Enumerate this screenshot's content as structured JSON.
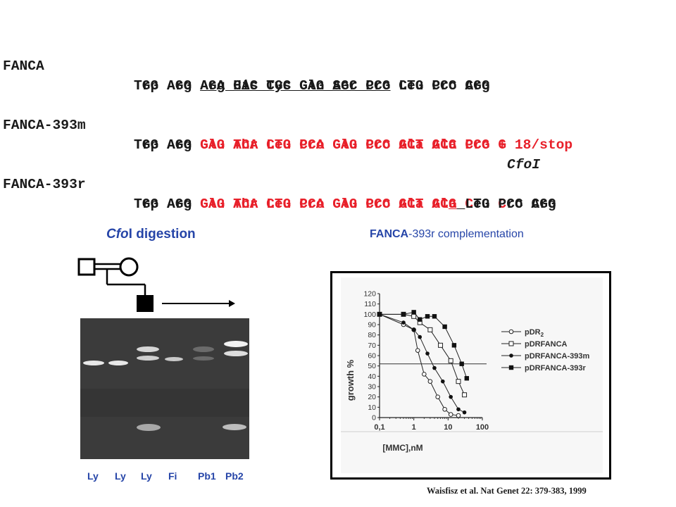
{
  "sequences": [
    {
      "label": "FANCA",
      "codons": "TGG AGG AGA CAC TGC CAG AGC CCG CTG CCC CGG",
      "aa": [
        "Trp Arg ",
        "Arg His Cys Gln Ser Pro",
        " Leu Pro Arg"
      ]
    },
    {
      "label": "FANCA-393m",
      "codons": [
        "TGG AGG ",
        "G",
        "AG ACA CTG CCA GAG CCC GCT GCC CCG G"
      ],
      "aa": [
        "Trp Arg ",
        "Glu Thr Leu Pro Glu Pro Ala Ala Pro + 18/stop"
      ]
    },
    {
      "enzyme_site": "CfoI"
    },
    {
      "label": "FANCA-393r",
      "codons": [
        "TGG AGG ",
        "G",
        "AG ACA CTG CCA GAG CCC GCT GC",
        "G",
        " ",
        "C",
        "TG ",
        "C",
        "CC CGG"
      ],
      "aa": [
        "Trp Arg ",
        "Glu Thr Leu Pro Glu Pro Ala Ala",
        " Leu Pro Arg"
      ]
    }
  ],
  "gel_panel": {
    "title_italic": "Cfo",
    "title_rest": "I digestion",
    "lane_labels": [
      "Ly",
      "Ly",
      "Ly",
      "Fi",
      "Pb1",
      "Pb2"
    ]
  },
  "complementation_panel": {
    "title_a": "FANCA",
    "title_b": "-393r complementation"
  },
  "chart_data": {
    "type": "line",
    "ylabel": "growth %",
    "xlabel": "[MMC],nM",
    "x_scale": "log",
    "x_ticks": [
      "0,1",
      "1",
      "10",
      "100"
    ],
    "y_ticks": [
      0,
      10,
      20,
      30,
      40,
      50,
      60,
      70,
      80,
      90,
      100,
      110,
      120
    ],
    "ylim": [
      0,
      120
    ],
    "reference_line_y": 52,
    "legend_position": "right",
    "series": [
      {
        "name": "pDR",
        "name_sub": "2",
        "marker": "open-circle",
        "x": [
          0.1,
          0.5,
          1,
          1.3,
          2,
          3,
          5,
          8,
          12,
          20
        ],
        "y": [
          100,
          90,
          85,
          65,
          42,
          35,
          20,
          8,
          3,
          2
        ]
      },
      {
        "name": "pDRFANCA",
        "marker": "open-square",
        "x": [
          0.1,
          0.5,
          1,
          1.5,
          3,
          6,
          12,
          20,
          30
        ],
        "y": [
          100,
          100,
          98,
          92,
          85,
          70,
          55,
          35,
          22
        ]
      },
      {
        "name": "pDRFANCA-393m",
        "marker": "filled-circle",
        "x": [
          0.1,
          0.5,
          1,
          1.5,
          2.5,
          4,
          7,
          12,
          20,
          30
        ],
        "y": [
          100,
          92,
          85,
          78,
          62,
          48,
          35,
          20,
          8,
          5
        ]
      },
      {
        "name": "pDRFANCA-393r",
        "marker": "filled-square",
        "x": [
          0.1,
          0.5,
          1,
          1.5,
          2.5,
          4,
          8,
          15,
          25,
          35
        ],
        "y": [
          100,
          100,
          102,
          95,
          98,
          98,
          88,
          70,
          52,
          38
        ]
      }
    ]
  },
  "citation": "Waisfisz et al. Nat Genet 22: 379-383, 1999",
  "colors": {
    "red": "#e8202a",
    "blue": "#2645a8",
    "gel_bg": "#3b3b3b"
  }
}
